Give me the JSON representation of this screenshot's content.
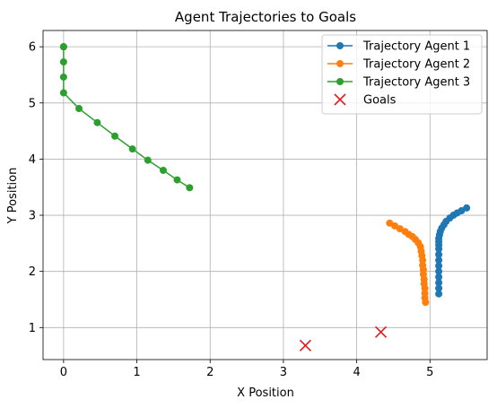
{
  "chart_data": {
    "type": "line",
    "title": "Agent Trajectories to Goals",
    "xlabel": "X Position",
    "ylabel": "Y Position",
    "xlim": [
      -0.28,
      5.78
    ],
    "ylim": [
      0.43,
      6.29
    ],
    "xticks": [
      0,
      1,
      2,
      3,
      4,
      5
    ],
    "yticks": [
      1,
      2,
      3,
      4,
      5,
      6
    ],
    "grid": true,
    "legend_position": "top-right",
    "series": [
      {
        "name": "Trajectory Agent 1",
        "color": "#1f77b4",
        "marker": "circle",
        "x": [
          5.12,
          5.12,
          5.12,
          5.12,
          5.12,
          5.12,
          5.12,
          5.12,
          5.12,
          5.12,
          5.12,
          5.12,
          5.13,
          5.14,
          5.16,
          5.19,
          5.22,
          5.27,
          5.32,
          5.37,
          5.43,
          5.5
        ],
        "y": [
          1.6,
          1.7,
          1.8,
          1.9,
          2.0,
          2.1,
          2.2,
          2.3,
          2.4,
          2.47,
          2.53,
          2.59,
          2.65,
          2.71,
          2.77,
          2.83,
          2.89,
          2.95,
          3.0,
          3.04,
          3.08,
          3.13
        ]
      },
      {
        "name": "Trajectory Agent 2",
        "color": "#ff7f0e",
        "marker": "circle",
        "x": [
          4.45,
          4.52,
          4.59,
          4.66,
          4.71,
          4.76,
          4.8,
          4.84,
          4.87,
          4.88,
          4.89,
          4.9,
          4.9,
          4.91,
          4.91,
          4.92,
          4.92,
          4.93,
          4.93,
          4.93,
          4.94
        ],
        "y": [
          2.86,
          2.81,
          2.76,
          2.71,
          2.66,
          2.62,
          2.57,
          2.51,
          2.44,
          2.36,
          2.28,
          2.2,
          2.11,
          2.03,
          1.95,
          1.86,
          1.78,
          1.7,
          1.61,
          1.53,
          1.45
        ]
      },
      {
        "name": "Trajectory Agent 3",
        "color": "#2ca02c",
        "marker": "circle",
        "x": [
          0.0,
          0.0,
          0.0,
          0.0,
          0.0,
          0.0,
          0.21,
          0.46,
          0.7,
          0.94,
          1.15,
          1.36,
          1.55,
          1.72
        ],
        "y": [
          6.0,
          6.0,
          6.0,
          5.73,
          5.46,
          5.18,
          4.9,
          4.65,
          4.41,
          4.18,
          3.98,
          3.8,
          3.63,
          3.49
        ]
      }
    ],
    "goals": {
      "name": "Goals",
      "color": "#e41a1c",
      "marker": "x",
      "x": [
        3.3,
        4.33
      ],
      "y": [
        0.68,
        0.92
      ]
    }
  }
}
